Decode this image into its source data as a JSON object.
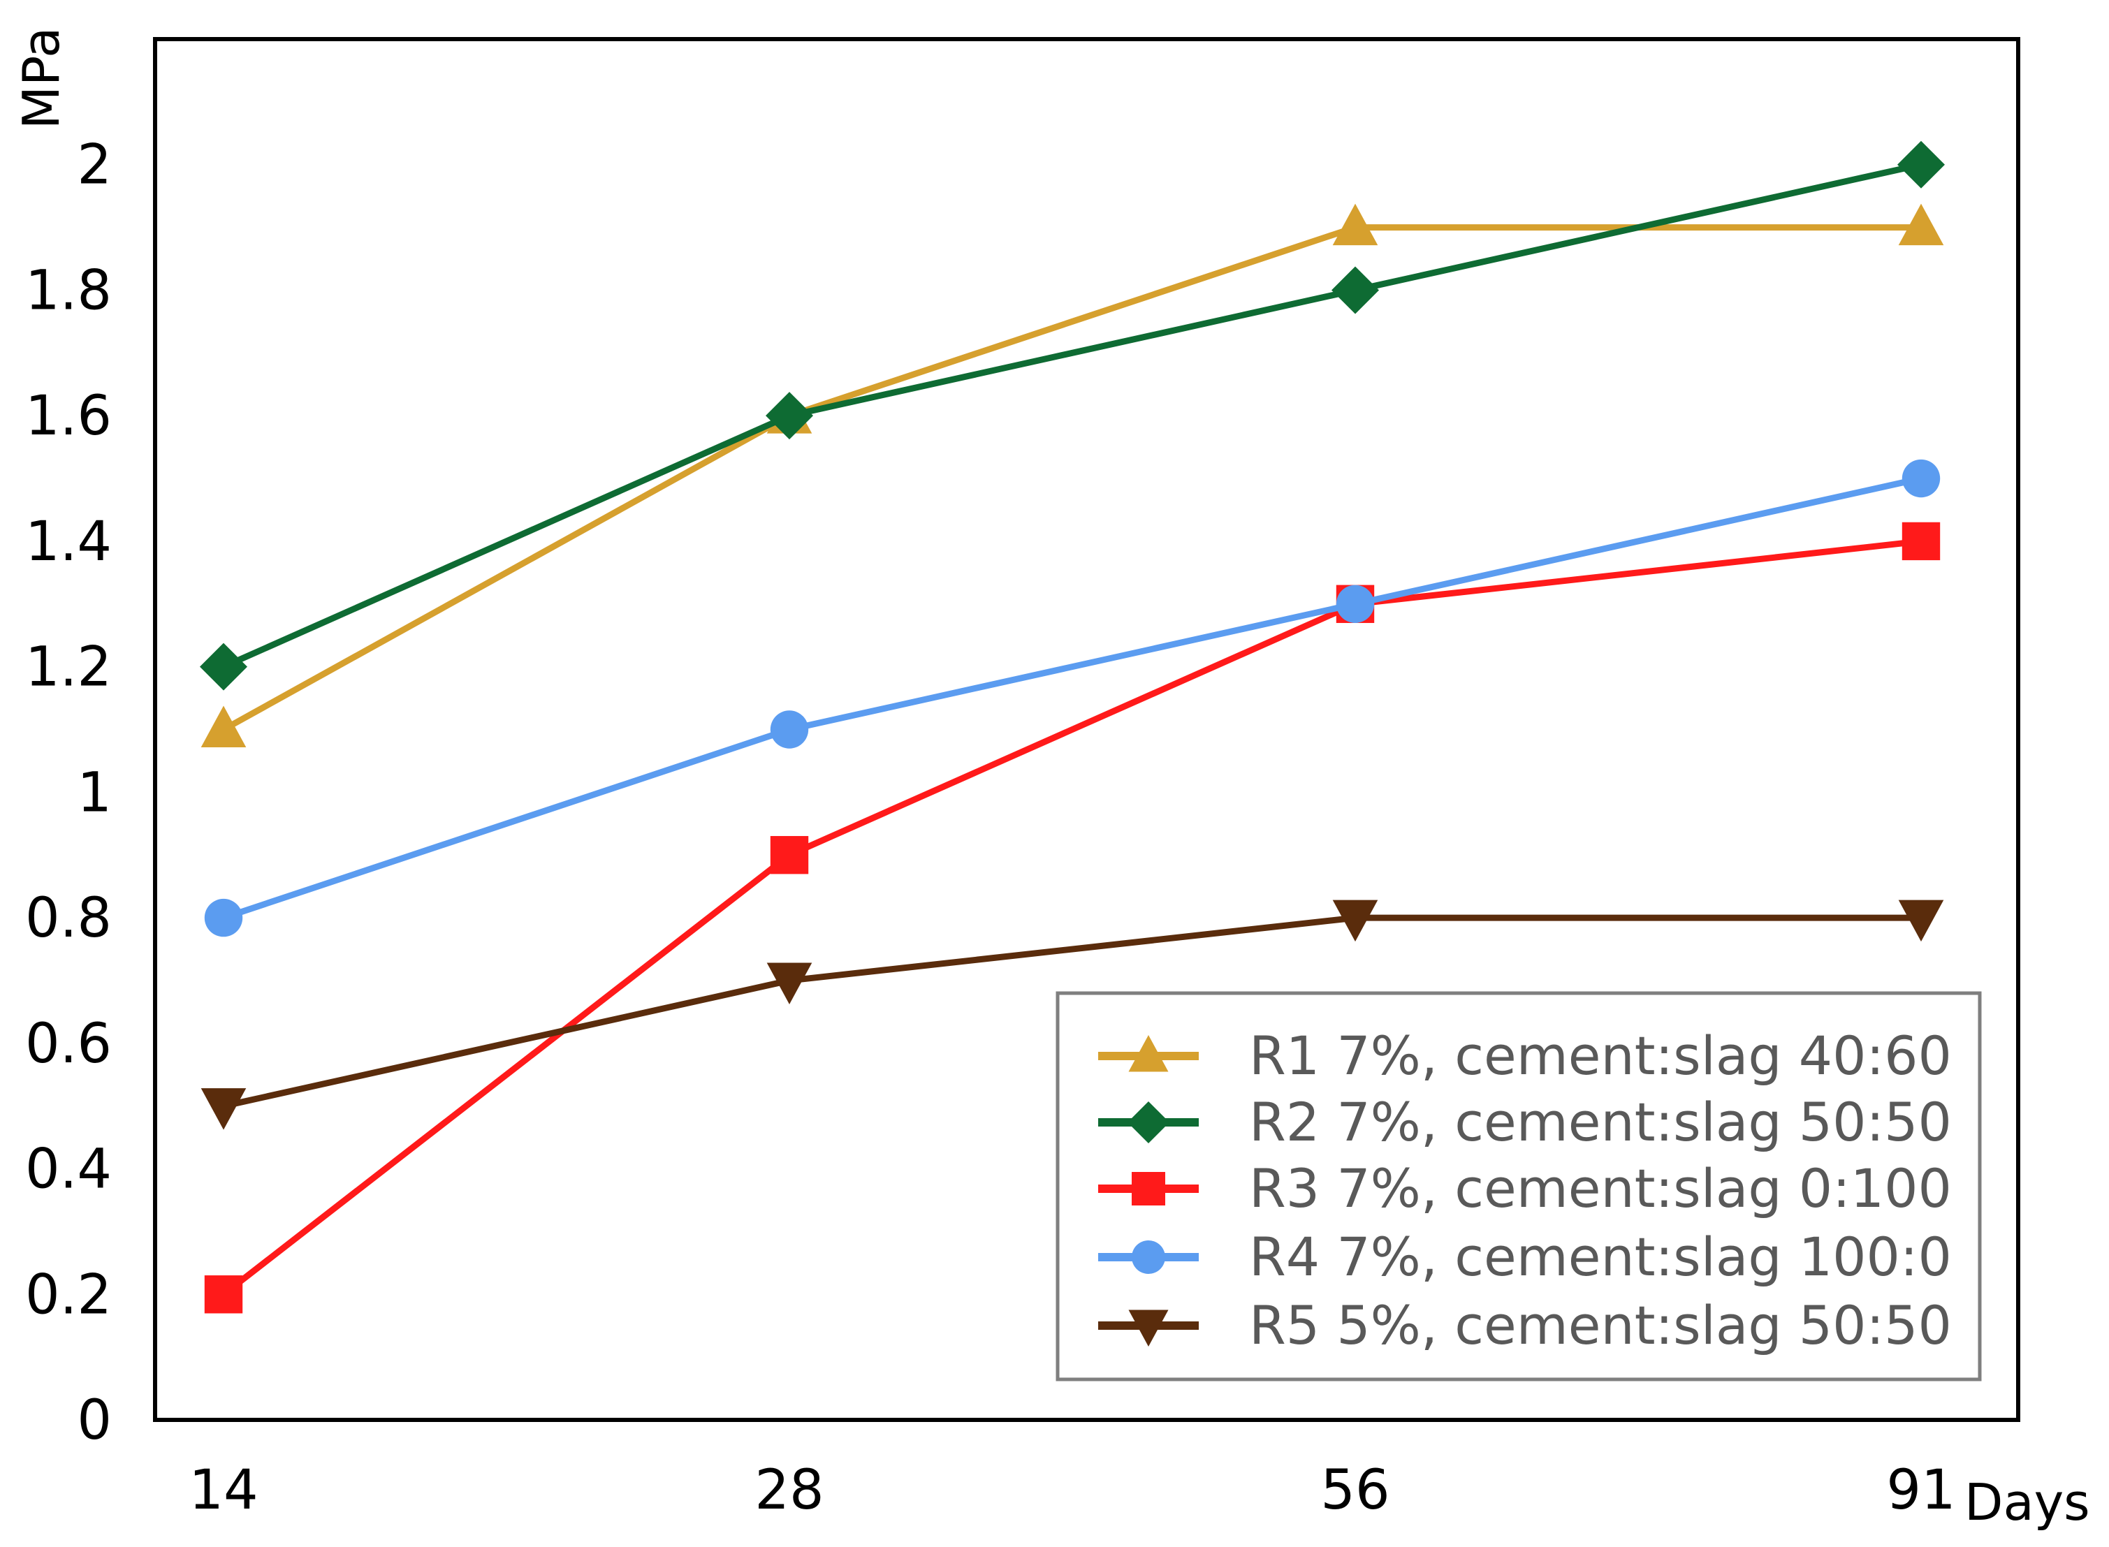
{
  "chart_data": {
    "type": "line",
    "title": "",
    "xlabel": "Days",
    "ylabel": "MPa",
    "categories": [
      "14",
      "28",
      "56",
      "91"
    ],
    "ylim": [
      0,
      2.2
    ],
    "yticks": [
      0,
      0.2,
      0.4,
      0.6,
      0.8,
      1,
      1.2,
      1.4,
      1.6,
      1.8,
      2
    ],
    "ytick_labels": [
      "0",
      "0.2",
      "0.4",
      "0.6",
      "0.8",
      "1",
      "1.2",
      "1.4",
      "1.6",
      "1.8",
      "2"
    ],
    "grid": false,
    "legend_position": "bottom-right",
    "series": [
      {
        "name": "R1 7%, cement:slag 40:60",
        "color": "#D6A02E",
        "marker": "triangle-up",
        "values": [
          1.1,
          1.6,
          1.9,
          1.9
        ]
      },
      {
        "name": "R2 7%, cement:slag 50:50",
        "color": "#0E6B33",
        "marker": "diamond",
        "values": [
          1.2,
          1.6,
          1.8,
          2.0
        ]
      },
      {
        "name": "R3 7%, cement:slag 0:100",
        "color": "#FF1A1A",
        "marker": "square",
        "values": [
          0.2,
          0.9,
          1.3,
          1.4
        ]
      },
      {
        "name": "R4 7%, cement:slag 100:0",
        "color": "#5B9CF0",
        "marker": "circle",
        "values": [
          0.8,
          1.1,
          1.3,
          1.5
        ]
      },
      {
        "name": "R5 5%, cement:slag 50:50",
        "color": "#5A2C0C",
        "marker": "triangle-down",
        "values": [
          0.5,
          0.7,
          0.8,
          0.8
        ]
      }
    ]
  }
}
